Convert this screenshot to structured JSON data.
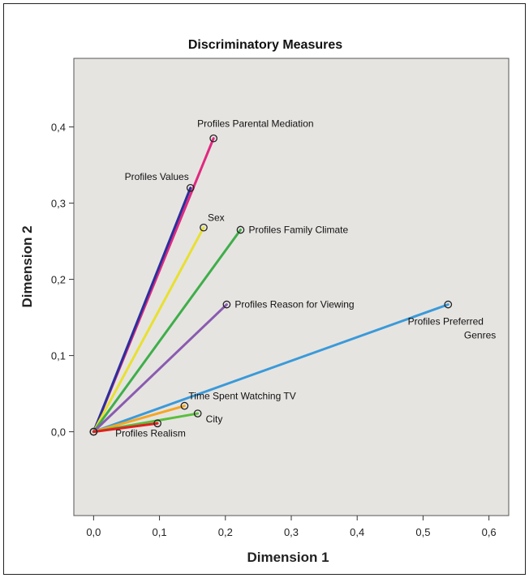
{
  "chart_data": {
    "type": "line",
    "title": "Discriminatory Measures",
    "xlabel": "Dimension 1",
    "ylabel": "Dimension 2",
    "xlim": [
      -0.03,
      0.63
    ],
    "ylim": [
      -0.11,
      0.49
    ],
    "xticks": [
      "0,0",
      "0,1",
      "0,2",
      "0,3",
      "0,4",
      "0,5",
      "0,6"
    ],
    "yticks": [
      "0,0",
      "0,1",
      "0,2",
      "0,3",
      "0,4"
    ],
    "grid": false,
    "background": "#e6e4e1",
    "series": [
      {
        "name": "Profiles Parental Mediation",
        "x": [
          0,
          0.182
        ],
        "y": [
          0,
          0.385
        ],
        "color": "#e0287f",
        "label_anchor": "above"
      },
      {
        "name": "Profiles Values",
        "x": [
          0,
          0.147
        ],
        "y": [
          0,
          0.32
        ],
        "color": "#2b2f9c",
        "label_anchor": "left"
      },
      {
        "name": "Sex",
        "x": [
          0,
          0.167
        ],
        "y": [
          0,
          0.268
        ],
        "color": "#e8e030",
        "label_anchor": "right-up"
      },
      {
        "name": "Profiles Family Climate",
        "x": [
          0,
          0.223
        ],
        "y": [
          0,
          0.265
        ],
        "color": "#3fae4a",
        "label_anchor": "right"
      },
      {
        "name": "Profiles Reason for Viewing",
        "x": [
          0,
          0.202
        ],
        "y": [
          0,
          0.167
        ],
        "color": "#8a5bb0",
        "label_anchor": "right"
      },
      {
        "name": "Profiles Preferred Genres",
        "x": [
          0,
          0.538
        ],
        "y": [
          0,
          0.167
        ],
        "color": "#3a9ad9",
        "label_lines": [
          "Profiles Preferred",
          "Genres"
        ],
        "label_anchor": "below"
      },
      {
        "name": "Time Spent Watching TV",
        "x": [
          0,
          0.138
        ],
        "y": [
          0,
          0.034
        ],
        "color": "#f5a623",
        "label_anchor": "right-up"
      },
      {
        "name": "City",
        "x": [
          0,
          0.158
        ],
        "y": [
          0,
          0.024
        ],
        "color": "#5abf3c",
        "label_anchor": "right-down"
      },
      {
        "name": "Profiles Realism",
        "x": [
          0,
          0.097
        ],
        "y": [
          0,
          0.011
        ],
        "color": "#e02020",
        "label_anchor": "below-left"
      }
    ]
  }
}
